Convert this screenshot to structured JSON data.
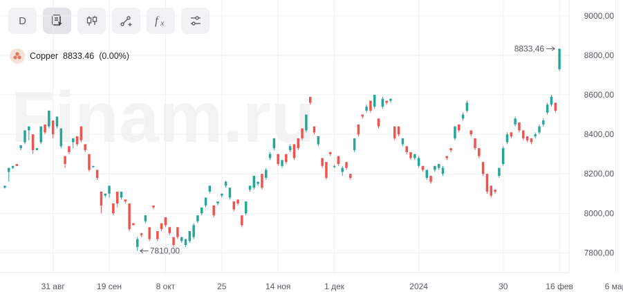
{
  "toolbar": {
    "period_label": "D",
    "buttons": [
      {
        "name": "period-button",
        "icon": "text-D"
      },
      {
        "name": "chart-type-button",
        "icon": "document-cursor-icon"
      },
      {
        "name": "candles-button",
        "icon": "candlestick-icon"
      },
      {
        "name": "drawing-button",
        "icon": "line-plus-icon"
      },
      {
        "name": "indicators-button",
        "icon": "fx-icon"
      },
      {
        "name": "settings-button",
        "icon": "sliders-icon"
      }
    ]
  },
  "instrument": {
    "name": "Copper",
    "last": "8833.46",
    "change": "(0.00%)",
    "logo_icon": "copper-coin-icon"
  },
  "watermark": "Finam.ru",
  "colors": {
    "up": "#26a69a",
    "down": "#ef5350",
    "grid": "#eef0f2",
    "text": "#555a60"
  },
  "chart_data": {
    "type": "candlestick",
    "y_axis": {
      "min": 7700,
      "max": 9080,
      "ticks": [
        7800,
        8000,
        8200,
        8400,
        8600,
        8800,
        9000
      ],
      "tick_labels": [
        "7800,00",
        "8000,00",
        "8200,00",
        "8400,00",
        "8600,00",
        "8800,00",
        "9000,00"
      ]
    },
    "x_axis": {
      "labels": [
        {
          "text": "31 авг",
          "i": 12
        },
        {
          "text": "19 сен",
          "i": 26
        },
        {
          "text": "8 окт",
          "i": 40
        },
        {
          "text": "25",
          "i": 54
        },
        {
          "text": "14 ноя",
          "i": 68
        },
        {
          "text": "1 дек",
          "i": 82
        },
        {
          "text": "2024",
          "i": 103
        },
        {
          "text": "30",
          "i": 124
        },
        {
          "text": "16 фев",
          "i": 138
        },
        {
          "text": "6 мар",
          "i": 152
        }
      ]
    },
    "markers": {
      "last_price_label": "8833,46",
      "low_label": "7810,00"
    },
    "candles": [
      [
        8130,
        8140,
        8125,
        8130
      ],
      [
        8210,
        8230,
        8160,
        8180
      ],
      [
        8230,
        8240,
        8225,
        8235
      ],
      [
        8250,
        8240,
        8255,
        8240
      ],
      [
        8330,
        8345,
        8320,
        8340
      ],
      [
        8360,
        8420,
        8350,
        8410
      ],
      [
        8420,
        8440,
        8370,
        8390
      ],
      [
        8400,
        8320,
        8300,
        8330
      ],
      [
        8320,
        8330,
        8340,
        8330
      ],
      [
        8360,
        8440,
        8350,
        8430
      ],
      [
        8450,
        8410,
        8400,
        8420
      ],
      [
        8440,
        8520,
        8430,
        8510
      ],
      [
        8470,
        8400,
        8380,
        8410
      ],
      [
        8440,
        8490,
        8430,
        8480
      ],
      [
        8340,
        8430,
        8330,
        8420
      ],
      [
        8290,
        8250,
        8230,
        8260
      ],
      [
        8340,
        8310,
        8300,
        8320
      ],
      [
        8360,
        8380,
        8330,
        8370
      ],
      [
        8390,
        8350,
        8340,
        8360
      ],
      [
        8440,
        8370,
        8360,
        8380
      ],
      [
        8350,
        8320,
        8310,
        8330
      ],
      [
        8300,
        8220,
        8210,
        8230
      ],
      [
        8240,
        8240,
        8230,
        8235
      ],
      [
        8220,
        8180,
        8170,
        8200
      ],
      [
        8110,
        8040,
        8000,
        8050
      ],
      [
        8090,
        8100,
        8080,
        8095
      ],
      [
        8100,
        8140,
        8080,
        8130
      ],
      [
        8050,
        8000,
        7990,
        8010
      ],
      [
        8110,
        8050,
        8030,
        8060
      ],
      [
        8080,
        8110,
        8070,
        8100
      ],
      [
        8070,
        8060,
        8050,
        8065
      ],
      [
        8050,
        7920,
        7910,
        7930
      ],
      [
        7950,
        7940,
        7940,
        7945
      ],
      [
        7830,
        7870,
        7810,
        7880
      ],
      [
        7900,
        7890,
        7880,
        7895
      ],
      [
        7960,
        7990,
        7950,
        7980
      ],
      [
        7930,
        7870,
        7860,
        7880
      ],
      [
        8040,
        8030,
        8020,
        8035
      ],
      [
        7910,
        7870,
        7860,
        7880
      ],
      [
        7950,
        7920,
        7910,
        7930
      ],
      [
        7980,
        7940,
        7930,
        7950
      ],
      [
        7930,
        7900,
        7890,
        7910
      ],
      [
        7880,
        7840,
        7830,
        7850
      ],
      [
        7930,
        7880,
        7870,
        7890
      ],
      [
        7860,
        7880,
        7850,
        7870
      ],
      [
        7840,
        7870,
        7830,
        7860
      ],
      [
        7860,
        7910,
        7850,
        7900
      ],
      [
        7880,
        7940,
        7870,
        7950
      ],
      [
        7960,
        7990,
        7950,
        7985
      ],
      [
        8000,
        8030,
        7990,
        8020
      ],
      [
        8040,
        8080,
        8030,
        8070
      ],
      [
        8110,
        8140,
        8100,
        8130
      ],
      [
        8040,
        7990,
        7980,
        8000
      ],
      [
        8050,
        8060,
        8040,
        8055
      ],
      [
        8090,
        8100,
        8080,
        8095
      ],
      [
        8140,
        8160,
        8130,
        8165
      ],
      [
        8080,
        8130,
        8070,
        8125
      ],
      [
        8060,
        8020,
        8010,
        8030
      ],
      [
        8070,
        8050,
        8040,
        8060
      ],
      [
        7990,
        7940,
        7930,
        7950
      ],
      [
        8000,
        8060,
        7990,
        8050
      ],
      [
        8120,
        8140,
        8110,
        8130
      ],
      [
        8130,
        8190,
        8120,
        8180
      ],
      [
        8150,
        8160,
        8140,
        8155
      ],
      [
        8200,
        8130,
        8120,
        8140
      ],
      [
        8180,
        8220,
        8170,
        8230
      ],
      [
        8280,
        8300,
        8270,
        8310
      ],
      [
        8330,
        8380,
        8320,
        8370
      ],
      [
        8300,
        8250,
        8240,
        8260
      ],
      [
        8240,
        8270,
        8230,
        8260
      ],
      [
        8300,
        8260,
        8250,
        8270
      ],
      [
        8320,
        8340,
        8310,
        8350
      ],
      [
        8350,
        8280,
        8270,
        8290
      ],
      [
        8380,
        8330,
        8320,
        8340
      ],
      [
        8430,
        8380,
        8370,
        8390
      ],
      [
        8420,
        8500,
        8410,
        8490
      ],
      [
        8590,
        8560,
        8550,
        8570
      ],
      [
        8440,
        8410,
        8400,
        8420
      ],
      [
        8350,
        8390,
        8340,
        8380
      ],
      [
        8280,
        8240,
        8230,
        8250
      ],
      [
        8260,
        8180,
        8170,
        8200
      ],
      [
        8310,
        8300,
        8290,
        8305
      ],
      [
        8240,
        8240,
        8230,
        8245
      ],
      [
        8290,
        8250,
        8240,
        8260
      ],
      [
        8210,
        8230,
        8190,
        8240
      ],
      [
        8260,
        8230,
        8220,
        8240
      ],
      [
        8200,
        8180,
        8170,
        8190
      ],
      [
        8320,
        8380,
        8310,
        8370
      ],
      [
        8450,
        8400,
        8390,
        8410
      ],
      [
        8500,
        8490,
        8480,
        8495
      ],
      [
        8520,
        8540,
        8510,
        8550
      ],
      [
        8570,
        8520,
        8510,
        8530
      ],
      [
        8540,
        8600,
        8530,
        8590
      ],
      [
        8480,
        8440,
        8430,
        8450
      ],
      [
        8540,
        8580,
        8530,
        8590
      ],
      [
        8570,
        8560,
        8550,
        8565
      ],
      [
        8570,
        8580,
        8560,
        8575
      ],
      [
        8440,
        8380,
        8370,
        8390
      ],
      [
        8440,
        8400,
        8390,
        8410
      ],
      [
        8350,
        8380,
        8340,
        8370
      ],
      [
        8340,
        8310,
        8300,
        8320
      ],
      [
        8310,
        8280,
        8270,
        8290
      ],
      [
        8280,
        8300,
        8270,
        8295
      ],
      [
        8240,
        8280,
        8230,
        8290
      ],
      [
        8240,
        8220,
        8210,
        8230
      ],
      [
        8180,
        8220,
        8170,
        8210
      ],
      [
        8190,
        8160,
        8150,
        8170
      ],
      [
        8220,
        8240,
        8210,
        8235
      ],
      [
        8230,
        8250,
        8220,
        8245
      ],
      [
        8200,
        8230,
        8190,
        8240
      ],
      [
        8290,
        8280,
        8270,
        8285
      ],
      [
        8330,
        8320,
        8310,
        8325
      ],
      [
        8380,
        8440,
        8370,
        8430
      ],
      [
        8450,
        8420,
        8410,
        8430
      ],
      [
        8480,
        8500,
        8470,
        8510
      ],
      [
        8520,
        8560,
        8510,
        8570
      ],
      [
        8420,
        8400,
        8390,
        8410
      ],
      [
        8380,
        8330,
        8320,
        8340
      ],
      [
        8330,
        8290,
        8280,
        8300
      ],
      [
        8260,
        8200,
        8190,
        8210
      ],
      [
        8200,
        8110,
        8100,
        8120
      ],
      [
        8140,
        8090,
        8080,
        8100
      ],
      [
        8120,
        8110,
        8100,
        8115
      ],
      [
        8190,
        8230,
        8180,
        8220
      ],
      [
        8250,
        8330,
        8240,
        8340
      ],
      [
        8360,
        8400,
        8350,
        8410
      ],
      [
        8410,
        8390,
        8380,
        8400
      ],
      [
        8450,
        8480,
        8440,
        8490
      ],
      [
        8460,
        8420,
        8410,
        8430
      ],
      [
        8420,
        8380,
        8370,
        8390
      ],
      [
        8390,
        8370,
        8360,
        8380
      ],
      [
        8380,
        8360,
        8350,
        8370
      ],
      [
        8390,
        8400,
        8380,
        8410
      ],
      [
        8410,
        8440,
        8400,
        8450
      ],
      [
        8450,
        8470,
        8440,
        8480
      ],
      [
        8510,
        8550,
        8500,
        8560
      ],
      [
        8550,
        8590,
        8540,
        8600
      ],
      [
        8560,
        8520,
        8510,
        8530
      ],
      [
        8730,
        8833.46,
        8720,
        8833.46
      ]
    ]
  }
}
